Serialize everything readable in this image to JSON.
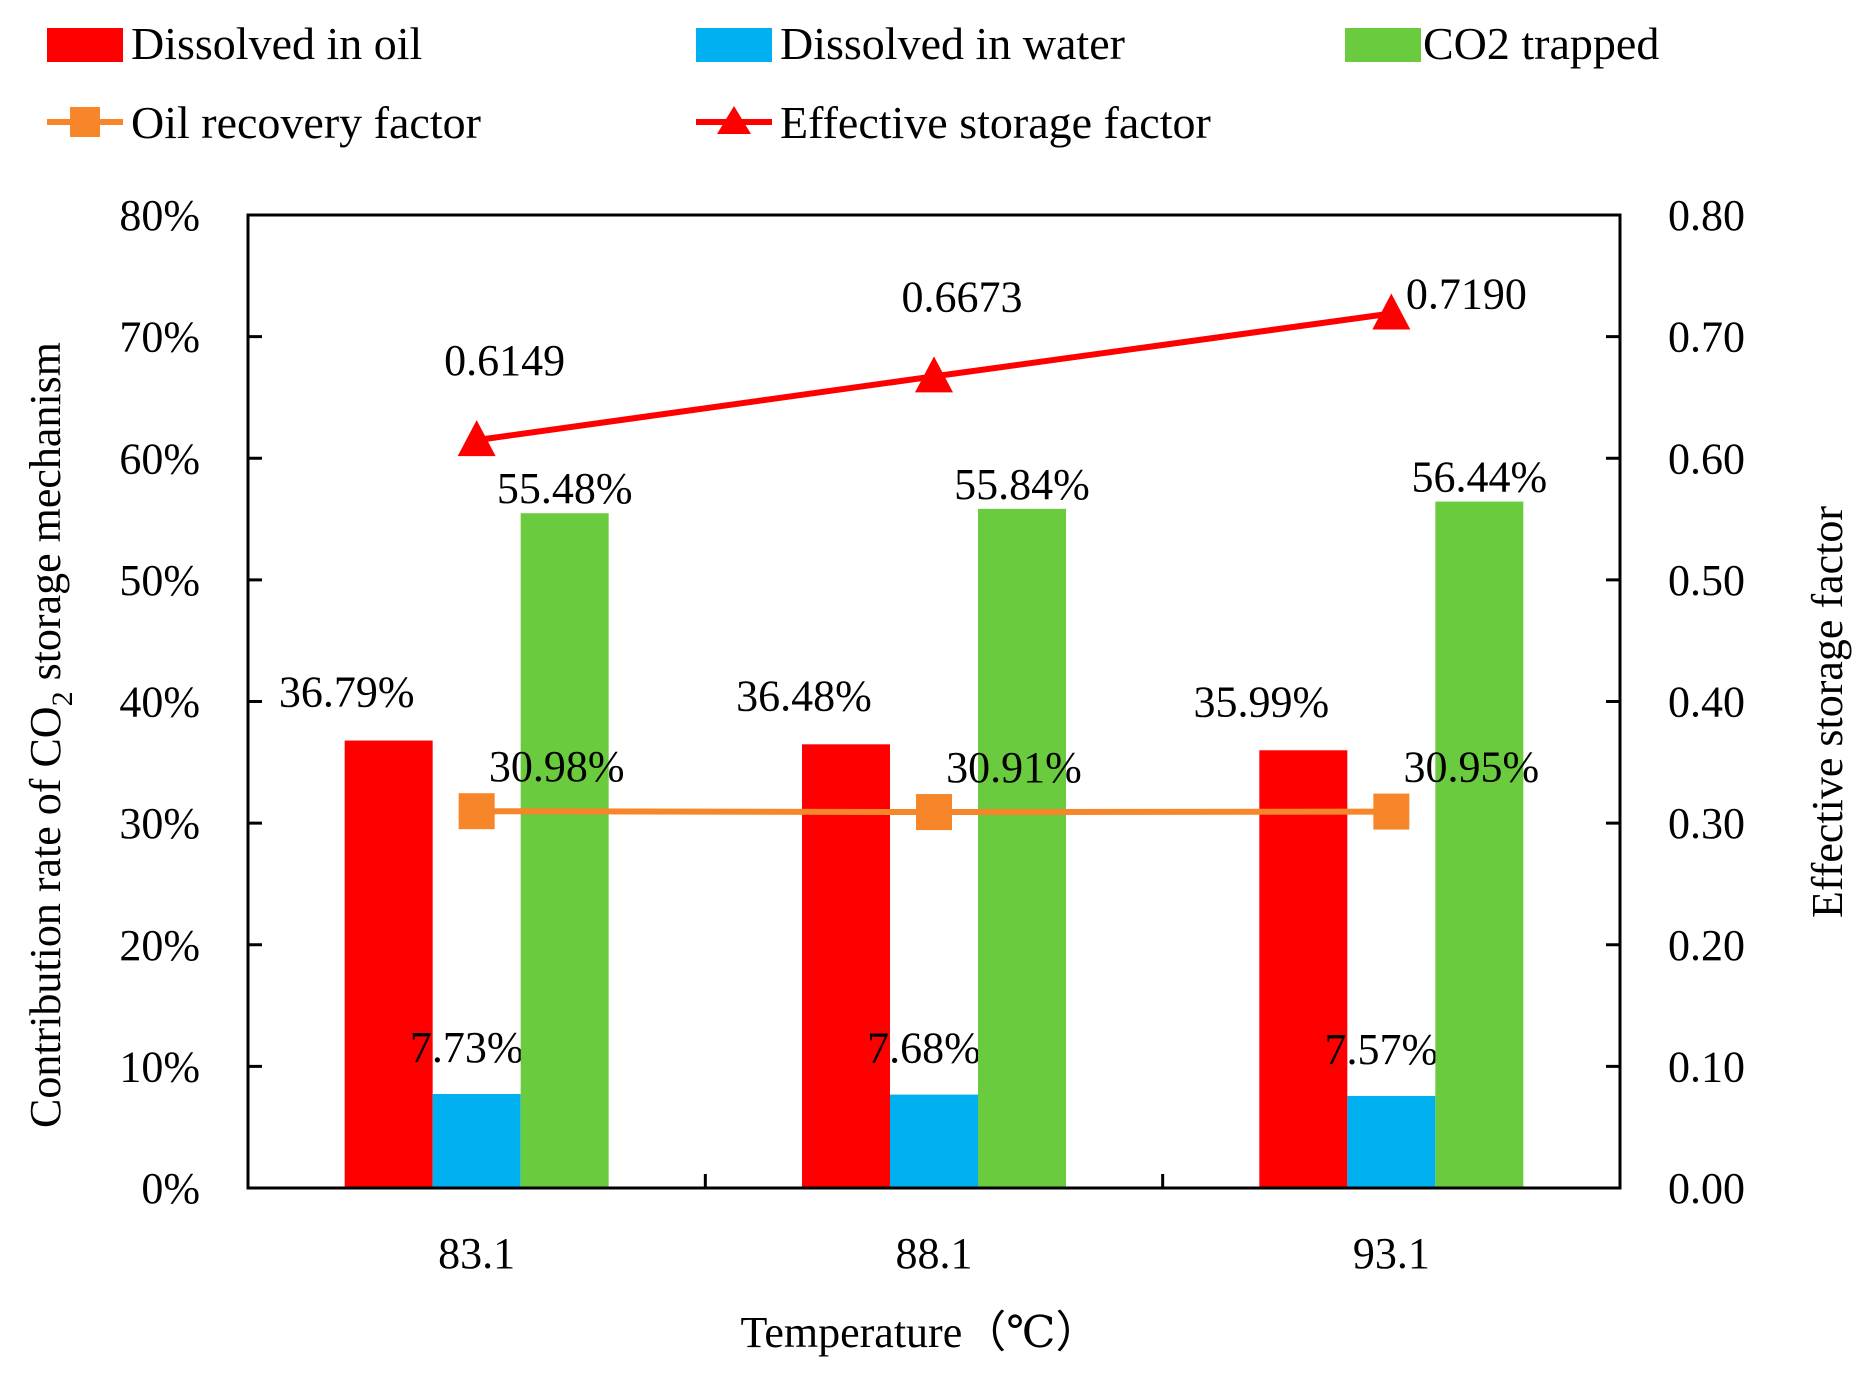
{
  "colors": {
    "oil": "#ff0000",
    "water": "#00b0f0",
    "trapped": "#6bcb3f",
    "recovery": "#f7852a",
    "storage": "#ff0000",
    "axis": "#000000"
  },
  "legend": {
    "oil": "Dissolved in oil",
    "water": "Dissolved in water",
    "trapped": "CO2 trapped",
    "recovery": "Oil recovery  factor",
    "storage": "Effective storage factor"
  },
  "chart_data": {
    "type": "bar",
    "categories": [
      "83.1",
      "88.1",
      "93.1"
    ],
    "series": [
      {
        "name": "Dissolved in oil",
        "axis": "left",
        "type": "bar",
        "values": [
          36.79,
          36.48,
          35.99
        ],
        "labels": [
          "36.79%",
          "36.48%",
          "35.99%"
        ]
      },
      {
        "name": "Dissolved in water",
        "axis": "left",
        "type": "bar",
        "values": [
          7.73,
          7.68,
          7.57
        ],
        "labels": [
          "7.73%",
          "7.68%",
          "7.57%"
        ]
      },
      {
        "name": "CO2 trapped",
        "axis": "left",
        "type": "bar",
        "values": [
          55.48,
          55.84,
          56.44
        ],
        "labels": [
          "55.48%",
          "55.84%",
          "56.44%"
        ]
      },
      {
        "name": "Oil recovery  factor",
        "axis": "left",
        "type": "line",
        "values": [
          30.98,
          30.91,
          30.95
        ],
        "labels": [
          "30.98%",
          "30.91%",
          "30.95%"
        ]
      },
      {
        "name": "Effective storage factor",
        "axis": "right",
        "type": "line",
        "values": [
          0.6149,
          0.6673,
          0.719
        ],
        "labels": [
          "0.6149",
          "0.6673",
          "0.7190"
        ]
      }
    ],
    "xlabel": "Temperature（℃）",
    "ylabel_left_pre": "Contribution  rate  of  CO",
    "ylabel_left_sub": "2",
    "ylabel_left_post": "  storage  mechanism",
    "ylabel_right": "Effective  storage  factor",
    "ylim_left": [
      0,
      80
    ],
    "ylim_right": [
      0,
      0.8
    ],
    "yticks_left": [
      "0%",
      "10%",
      "20%",
      "30%",
      "40%",
      "50%",
      "60%",
      "70%",
      "80%"
    ],
    "yticks_right": [
      "0.00",
      "0.10",
      "0.20",
      "0.30",
      "0.40",
      "0.50",
      "0.60",
      "0.70",
      "0.80"
    ],
    "grid": false,
    "legend_position": "top"
  }
}
